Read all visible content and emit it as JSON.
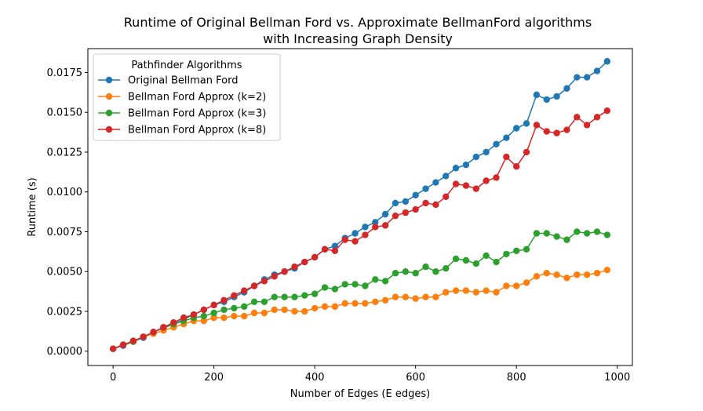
{
  "chart_data": {
    "type": "line",
    "title": [
      "Runtime of Original Bellman Ford vs. Approximate BellmanFord algorithms",
      "with Increasing Graph Density"
    ],
    "xlabel": "Number of Edges (E edges)",
    "ylabel": "Runtime (s)",
    "xlim": [
      -50,
      1030
    ],
    "ylim": [
      -0.0009,
      0.019
    ],
    "xticks": [
      0,
      200,
      400,
      600,
      800,
      1000
    ],
    "xtick_labels": [
      "0",
      "200",
      "400",
      "600",
      "800",
      "1000"
    ],
    "yticks": [
      0,
      0.0025,
      0.005,
      0.0075,
      0.01,
      0.0125,
      0.015,
      0.0175
    ],
    "ytick_labels": [
      "0.0000",
      "0.0025",
      "0.0050",
      "0.0075",
      "0.0100",
      "0.0125",
      "0.0150",
      "0.0175"
    ],
    "grid": false,
    "legend": {
      "title": "Pathfinder Algorithms",
      "location": "upper-left"
    },
    "x": [
      0,
      20,
      40,
      60,
      80,
      100,
      120,
      140,
      160,
      180,
      200,
      220,
      240,
      260,
      280,
      300,
      320,
      340,
      360,
      380,
      400,
      420,
      440,
      460,
      480,
      500,
      520,
      540,
      560,
      580,
      600,
      620,
      640,
      660,
      680,
      700,
      720,
      740,
      760,
      780,
      800,
      820,
      840,
      860,
      880,
      900,
      920,
      940,
      960,
      980
    ],
    "series": [
      {
        "name": "Original Bellman Ford",
        "color": "#1f77b4",
        "values": [
          0.00015,
          0.00035,
          0.0006,
          0.00085,
          0.0012,
          0.00145,
          0.0017,
          0.002,
          0.0023,
          0.0026,
          0.0029,
          0.0031,
          0.0034,
          0.0037,
          0.0041,
          0.0045,
          0.0048,
          0.005,
          0.0052,
          0.0056,
          0.0059,
          0.0064,
          0.0066,
          0.0071,
          0.0074,
          0.0078,
          0.0081,
          0.0086,
          0.0093,
          0.0094,
          0.0098,
          0.0102,
          0.0106,
          0.011,
          0.0115,
          0.0117,
          0.0122,
          0.0125,
          0.013,
          0.0134,
          0.014,
          0.0143,
          0.0161,
          0.0158,
          0.016,
          0.0165,
          0.0172,
          0.0172,
          0.0176,
          0.0182
        ]
      },
      {
        "name": "Bellman Ford Approx (k=2)",
        "color": "#ff7f0e",
        "values": [
          0.00015,
          0.0004,
          0.0006,
          0.0009,
          0.0011,
          0.0013,
          0.0015,
          0.0017,
          0.0019,
          0.0019,
          0.0021,
          0.0021,
          0.0022,
          0.0022,
          0.0024,
          0.0024,
          0.0026,
          0.0026,
          0.0025,
          0.0025,
          0.0027,
          0.0028,
          0.0028,
          0.003,
          0.003,
          0.003,
          0.0031,
          0.0032,
          0.0034,
          0.0034,
          0.0033,
          0.0034,
          0.0034,
          0.0037,
          0.0038,
          0.0038,
          0.0037,
          0.0038,
          0.0037,
          0.0041,
          0.0041,
          0.0043,
          0.0047,
          0.0049,
          0.0048,
          0.0046,
          0.0048,
          0.0048,
          0.0049,
          0.0051
        ]
      },
      {
        "name": "Bellman Ford Approx (k=3)",
        "color": "#2ca02c",
        "values": [
          0.00015,
          0.0004,
          0.0006,
          0.0009,
          0.0012,
          0.0015,
          0.0017,
          0.0019,
          0.0021,
          0.0022,
          0.0024,
          0.0026,
          0.0027,
          0.0028,
          0.0031,
          0.0031,
          0.0034,
          0.0034,
          0.0034,
          0.0035,
          0.0036,
          0.004,
          0.0039,
          0.0042,
          0.0042,
          0.0041,
          0.0045,
          0.0044,
          0.0049,
          0.005,
          0.0049,
          0.0053,
          0.005,
          0.0052,
          0.0058,
          0.0057,
          0.0055,
          0.006,
          0.0056,
          0.0061,
          0.0063,
          0.0064,
          0.0074,
          0.0074,
          0.0072,
          0.007,
          0.0075,
          0.0074,
          0.0075,
          0.0073
        ]
      },
      {
        "name": "Bellman Ford Approx (k=8)",
        "color": "#d62728",
        "values": [
          0.00015,
          0.0004,
          0.00065,
          0.0009,
          0.0012,
          0.0015,
          0.0018,
          0.0021,
          0.0023,
          0.0026,
          0.0029,
          0.0032,
          0.0035,
          0.0038,
          0.0041,
          0.0044,
          0.0047,
          0.005,
          0.0053,
          0.0056,
          0.0059,
          0.0064,
          0.0063,
          0.007,
          0.0069,
          0.0073,
          0.0078,
          0.0079,
          0.0085,
          0.0087,
          0.0089,
          0.0093,
          0.0092,
          0.0097,
          0.0105,
          0.0104,
          0.0102,
          0.0107,
          0.0109,
          0.0122,
          0.0116,
          0.0125,
          0.0142,
          0.0138,
          0.0137,
          0.0139,
          0.0147,
          0.0142,
          0.0147,
          0.0151
        ]
      }
    ]
  }
}
